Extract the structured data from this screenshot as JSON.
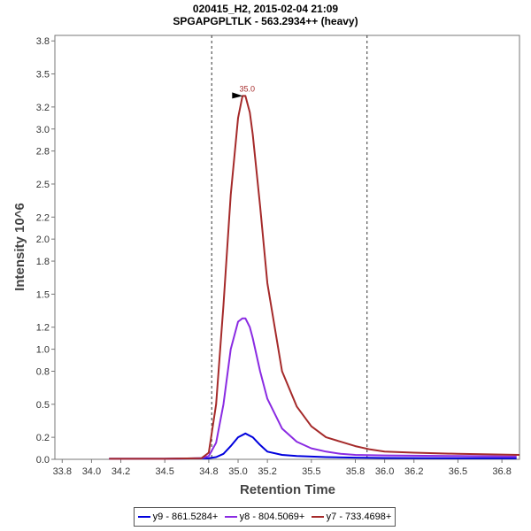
{
  "chart_data": {
    "type": "line",
    "title": "020415_H2, 2015-02-04 21:09",
    "subtitle": "SPGAPGPLTLK - 563.2934++ (heavy)",
    "xlabel": "Retention Time",
    "ylabel": "Intensity 10^6",
    "xlim": [
      33.75,
      36.92
    ],
    "ylim": [
      0,
      3.85
    ],
    "x_ticks": [
      "33.8",
      "34.0",
      "34.2",
      "34.5",
      "34.8",
      "35.0",
      "35.2",
      "35.5",
      "35.8",
      "36.0",
      "36.2",
      "36.5",
      "36.8"
    ],
    "x_tick_values": [
      33.8,
      34.0,
      34.2,
      34.5,
      34.8,
      35.0,
      35.2,
      35.5,
      35.8,
      36.0,
      36.2,
      36.5,
      36.8
    ],
    "y_ticks": [
      "0.0",
      "0.2",
      "0.5",
      "0.8",
      "1.0",
      "1.2",
      "1.5",
      "1.8",
      "2.0",
      "2.2",
      "2.5",
      "2.8",
      "3.0",
      "3.2",
      "3.5",
      "3.8"
    ],
    "y_tick_values": [
      0.0,
      0.2,
      0.5,
      0.8,
      1.0,
      1.2,
      1.5,
      1.8,
      2.0,
      2.2,
      2.5,
      2.8,
      3.0,
      3.2,
      3.5,
      3.8
    ],
    "boundary_lines": [
      34.82,
      35.88
    ],
    "peak_annotation": {
      "label": "35.0",
      "x": 35.05,
      "y": 3.3,
      "color": "#a52a2a"
    },
    "legend_position": "bottom-center",
    "grid": false,
    "series": [
      {
        "name": "y9 - 861.5284+",
        "color": "#0000dd",
        "x": [
          34.12,
          34.5,
          34.8,
          34.85,
          34.9,
          34.95,
          35.0,
          35.05,
          35.1,
          35.15,
          35.2,
          35.3,
          35.4,
          35.5,
          35.6,
          35.8,
          36.0,
          36.5,
          36.9
        ],
        "y": [
          0.005,
          0.005,
          0.01,
          0.02,
          0.05,
          0.12,
          0.2,
          0.235,
          0.2,
          0.13,
          0.07,
          0.04,
          0.03,
          0.025,
          0.02,
          0.015,
          0.012,
          0.01,
          0.01
        ]
      },
      {
        "name": "y8 - 804.5069+",
        "color": "#8a2be2",
        "x": [
          34.12,
          34.5,
          34.75,
          34.8,
          34.85,
          34.9,
          34.95,
          35.0,
          35.03,
          35.05,
          35.08,
          35.1,
          35.15,
          35.2,
          35.3,
          35.4,
          35.5,
          35.6,
          35.7,
          35.8,
          36.0,
          36.5,
          36.9
        ],
        "y": [
          0.005,
          0.005,
          0.01,
          0.03,
          0.15,
          0.5,
          1.0,
          1.25,
          1.28,
          1.28,
          1.2,
          1.1,
          0.8,
          0.55,
          0.28,
          0.16,
          0.1,
          0.07,
          0.05,
          0.04,
          0.035,
          0.03,
          0.025
        ]
      },
      {
        "name": "y7 - 733.4698+",
        "color": "#a52a2a",
        "x": [
          34.12,
          34.5,
          34.75,
          34.8,
          34.85,
          34.9,
          34.95,
          35.0,
          35.03,
          35.05,
          35.08,
          35.1,
          35.15,
          35.2,
          35.3,
          35.4,
          35.5,
          35.6,
          35.7,
          35.8,
          35.9,
          36.0,
          36.2,
          36.5,
          36.92
        ],
        "y": [
          0.005,
          0.005,
          0.01,
          0.06,
          0.5,
          1.4,
          2.4,
          3.1,
          3.3,
          3.3,
          3.15,
          2.95,
          2.3,
          1.6,
          0.8,
          0.48,
          0.3,
          0.2,
          0.16,
          0.12,
          0.09,
          0.07,
          0.06,
          0.05,
          0.04
        ]
      }
    ]
  }
}
